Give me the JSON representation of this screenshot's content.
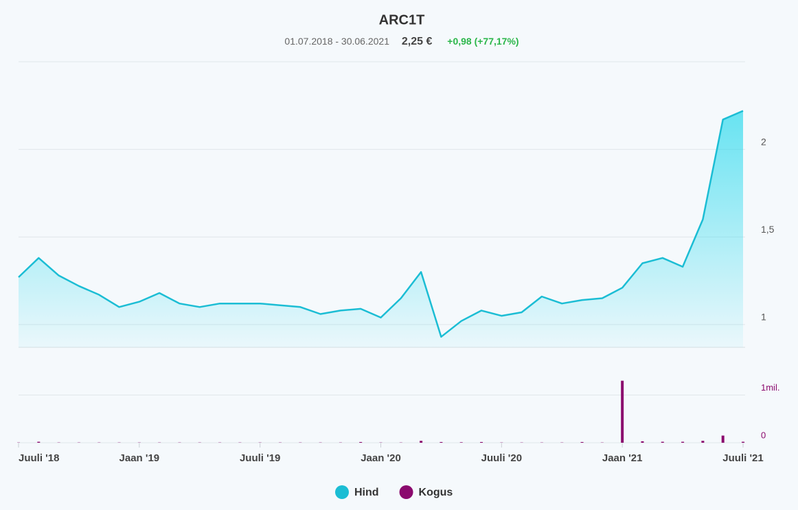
{
  "chart_data": [
    {
      "type": "area",
      "title": "ARC1T",
      "period": "01.07.2018 - 30.06.2021",
      "price": "2,25 €",
      "change": "+0,98 (+77,17%)",
      "x": [
        "2018-07",
        "2018-08",
        "2018-09",
        "2018-10",
        "2018-11",
        "2018-12",
        "2019-01",
        "2019-02",
        "2019-03",
        "2019-04",
        "2019-05",
        "2019-06",
        "2019-07",
        "2019-08",
        "2019-09",
        "2019-10",
        "2019-11",
        "2019-12",
        "2020-01",
        "2020-02",
        "2020-03",
        "2020-04",
        "2020-05",
        "2020-06",
        "2020-07",
        "2020-08",
        "2020-09",
        "2020-10",
        "2020-11",
        "2020-12",
        "2021-01",
        "2021-02",
        "2021-03",
        "2021-04",
        "2021-05",
        "2021-06",
        "2021-07"
      ],
      "series": [
        {
          "name": "Hind",
          "color": "#1bbdd4",
          "values": [
            1.27,
            1.38,
            1.28,
            1.22,
            1.17,
            1.1,
            1.13,
            1.18,
            1.12,
            1.1,
            1.12,
            1.12,
            1.12,
            1.11,
            1.1,
            1.06,
            1.08,
            1.09,
            1.04,
            1.15,
            1.3,
            0.93,
            1.02,
            1.08,
            1.05,
            1.07,
            1.16,
            1.12,
            1.14,
            1.15,
            1.21,
            1.35,
            1.38,
            1.33,
            1.6,
            2.17,
            2.22
          ]
        }
      ],
      "ylim": [
        0.87,
        2.5
      ],
      "yticks": [
        1,
        {
          "value": 1.5,
          "label": "1,5"
        },
        2
      ]
    },
    {
      "type": "bar",
      "x": [
        "2018-07",
        "2018-08",
        "2018-09",
        "2018-10",
        "2018-11",
        "2018-12",
        "2019-01",
        "2019-02",
        "2019-03",
        "2019-04",
        "2019-05",
        "2019-06",
        "2019-07",
        "2019-08",
        "2019-09",
        "2019-10",
        "2019-11",
        "2019-12",
        "2020-01",
        "2020-02",
        "2020-03",
        "2020-04",
        "2020-05",
        "2020-06",
        "2020-07",
        "2020-08",
        "2020-09",
        "2020-10",
        "2020-11",
        "2020-12",
        "2021-01",
        "2021-02",
        "2021-03",
        "2021-04",
        "2021-05",
        "2021-06",
        "2021-07"
      ],
      "series": [
        {
          "name": "Kogus",
          "color": "#8b0a6e",
          "values": [
            5000,
            20000,
            5000,
            5000,
            5000,
            5000,
            5000,
            5000,
            5000,
            5000,
            5000,
            5000,
            5000,
            5000,
            5000,
            5000,
            5000,
            15000,
            5000,
            5000,
            40000,
            15000,
            10000,
            15000,
            5000,
            5000,
            5000,
            5000,
            15000,
            5000,
            1300000,
            30000,
            20000,
            20000,
            40000,
            150000,
            20000
          ]
        }
      ],
      "ylim": [
        0,
        2000000
      ],
      "yticks": [
        0,
        {
          "value": 1000000,
          "label": "1mil."
        }
      ],
      "xlim": [
        "2018-07",
        "2021-07"
      ],
      "xticks": [
        {
          "value": "2018-07",
          "label": "Juuli '18"
        },
        {
          "value": "2019-01",
          "label": "Jaan '19"
        },
        {
          "value": "2019-07",
          "label": "Juuli '19"
        },
        {
          "value": "2020-01",
          "label": "Jaan '20"
        },
        {
          "value": "2020-07",
          "label": "Juuli '20"
        },
        {
          "value": "2021-01",
          "label": "Jaan '21"
        },
        {
          "value": "2021-07",
          "label": "Juuli '21"
        }
      ]
    }
  ]
}
